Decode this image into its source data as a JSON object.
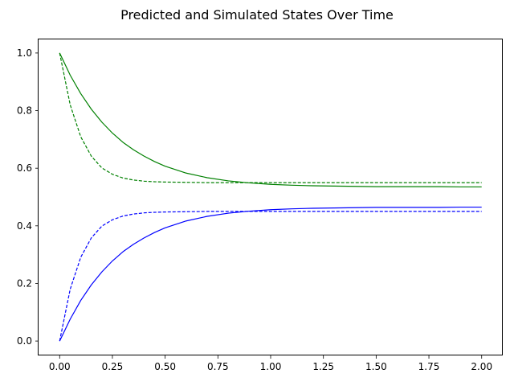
{
  "chart_data": {
    "type": "line",
    "title": "Predicted and Simulated States Over Time",
    "xlabel": "",
    "ylabel": "",
    "xlim": [
      -0.1,
      2.1
    ],
    "ylim": [
      -0.05,
      1.05
    ],
    "xticks": [
      0.0,
      0.25,
      0.5,
      0.75,
      1.0,
      1.25,
      1.5,
      1.75,
      2.0
    ],
    "xtick_labels": [
      "0.00",
      "0.25",
      "0.50",
      "0.75",
      "1.00",
      "1.25",
      "1.50",
      "1.75",
      "2.00"
    ],
    "yticks": [
      0.0,
      0.2,
      0.4,
      0.6,
      0.8,
      1.0
    ],
    "ytick_labels": [
      "0.0",
      "0.2",
      "0.4",
      "0.6",
      "0.8",
      "1.0"
    ],
    "grid": false,
    "legend": "none",
    "x": [
      0.0,
      0.05,
      0.1,
      0.15,
      0.2,
      0.25,
      0.3,
      0.35,
      0.4,
      0.45,
      0.5,
      0.6,
      0.7,
      0.8,
      0.9,
      1.0,
      1.1,
      1.2,
      1.3,
      1.4,
      1.5,
      1.6,
      1.7,
      1.8,
      1.9,
      2.0
    ],
    "series": [
      {
        "color": "#008000",
        "linestyle": "solid",
        "values": [
          1.0,
          0.923,
          0.859,
          0.805,
          0.76,
          0.722,
          0.69,
          0.664,
          0.642,
          0.623,
          0.607,
          0.583,
          0.567,
          0.556,
          0.549,
          0.544,
          0.541,
          0.539,
          0.538,
          0.537,
          0.536,
          0.536,
          0.536,
          0.536,
          0.535,
          0.535
        ]
      },
      {
        "color": "#008000",
        "linestyle": "dashed",
        "values": [
          1.0,
          0.82,
          0.709,
          0.642,
          0.601,
          0.579,
          0.566,
          0.559,
          0.555,
          0.553,
          0.552,
          0.551,
          0.55,
          0.55,
          0.55,
          0.55,
          0.55,
          0.55,
          0.55,
          0.55,
          0.55,
          0.55,
          0.55,
          0.55,
          0.55,
          0.55
        ]
      },
      {
        "color": "#0000ff",
        "linestyle": "solid",
        "values": [
          0.0,
          0.076,
          0.141,
          0.195,
          0.24,
          0.278,
          0.31,
          0.336,
          0.358,
          0.377,
          0.393,
          0.417,
          0.433,
          0.444,
          0.451,
          0.456,
          0.459,
          0.461,
          0.462,
          0.463,
          0.464,
          0.464,
          0.464,
          0.464,
          0.465,
          0.465
        ]
      },
      {
        "color": "#0000ff",
        "linestyle": "dashed",
        "values": [
          0.0,
          0.18,
          0.291,
          0.358,
          0.399,
          0.421,
          0.434,
          0.441,
          0.445,
          0.447,
          0.448,
          0.449,
          0.45,
          0.45,
          0.45,
          0.45,
          0.45,
          0.45,
          0.45,
          0.45,
          0.45,
          0.45,
          0.45,
          0.45,
          0.45,
          0.45
        ]
      }
    ]
  }
}
